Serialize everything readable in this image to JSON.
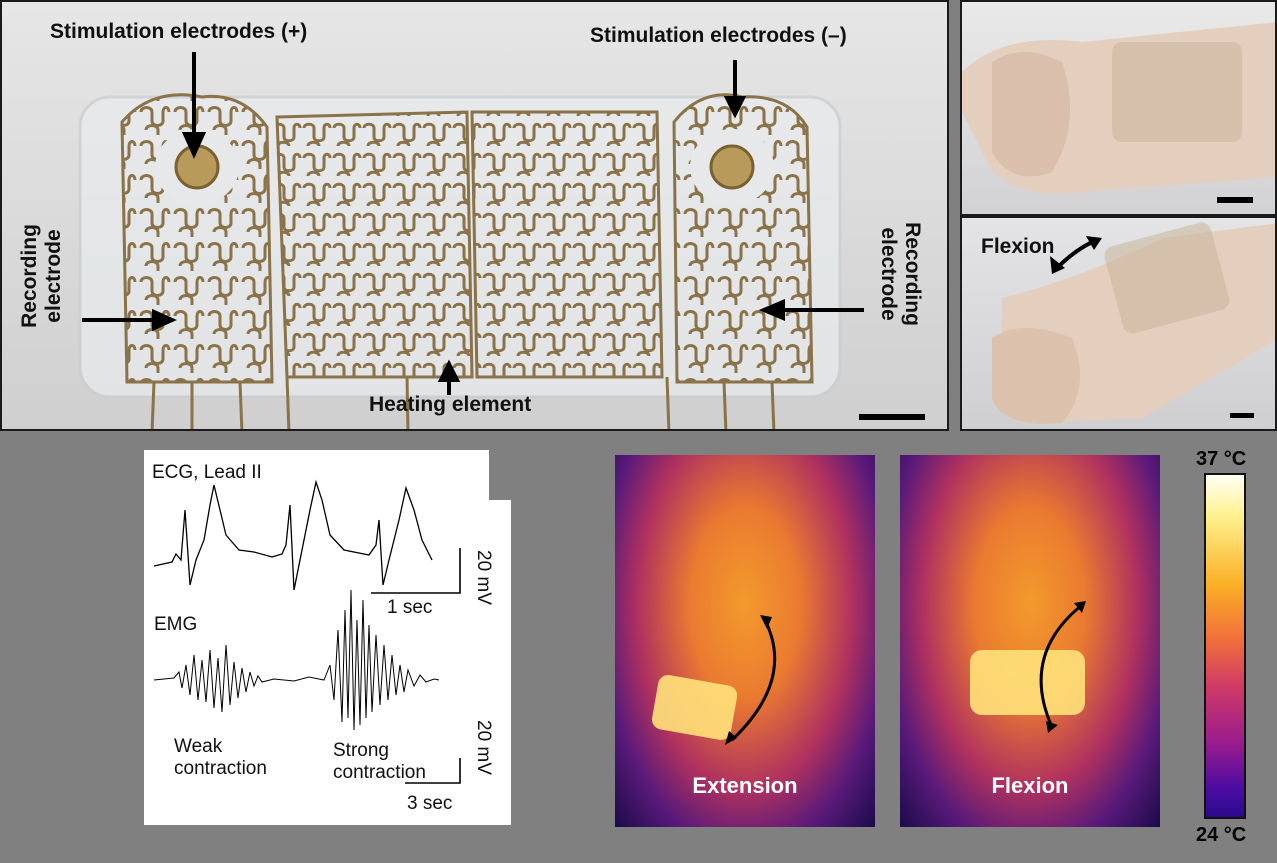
{
  "electrode_panel": {
    "stim_plus": "Stimulation electrodes (+)",
    "stim_minus": "Stimulation electrodes (–)",
    "recording_left": [
      "Recording",
      "electrode"
    ],
    "recording_right": [
      "Recording",
      "electrode"
    ],
    "heating": "Heating element"
  },
  "wrist_panel": {
    "flexion": "Flexion"
  },
  "signal_panel": {
    "ecg_title": "ECG,  Lead II",
    "ecg_scale_y": "20 mV",
    "ecg_scale_x": "1 sec",
    "emg_title": "EMG",
    "emg_scale_y": "20 mV",
    "emg_scale_x": "3 sec",
    "weak": [
      "Weak",
      "contraction"
    ],
    "strong": [
      "Strong",
      "contraction"
    ]
  },
  "thermal_panel": {
    "extension": "Extension",
    "flexion": "Flexion",
    "colorbar_max": "37 °C",
    "colorbar_min": "24 °C"
  }
}
